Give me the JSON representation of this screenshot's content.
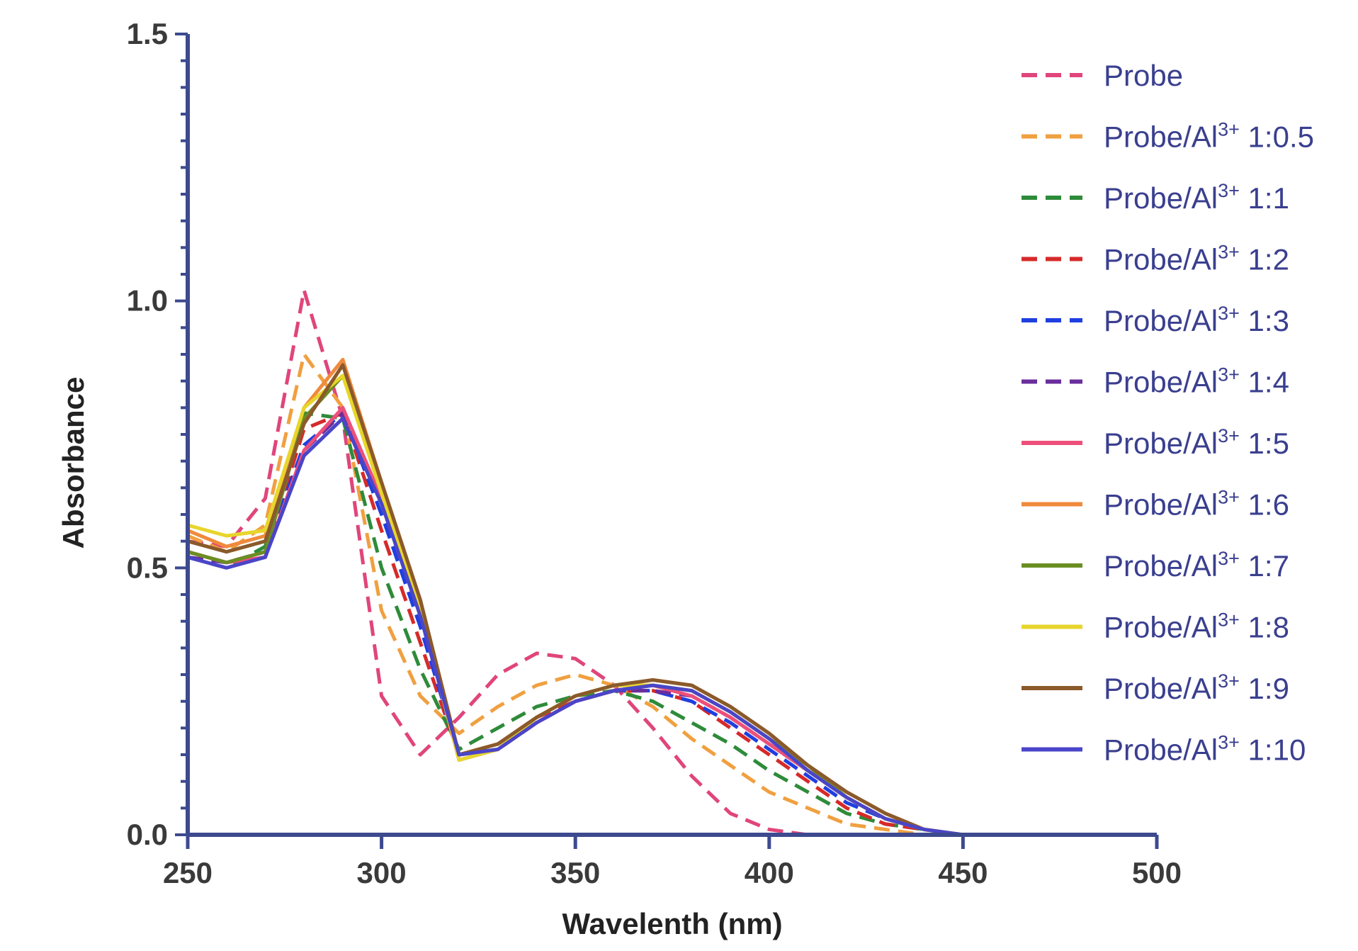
{
  "chart_data": {
    "type": "line",
    "title": "",
    "xlabel": "Wavelenth (nm)",
    "ylabel": "Absorbance",
    "xlim": [
      250,
      500
    ],
    "ylim": [
      0,
      1.5
    ],
    "xticks": [
      250,
      300,
      350,
      400,
      450,
      500
    ],
    "xtick_labels": [
      "250",
      "300",
      "350",
      "400",
      "450",
      "500"
    ],
    "yticks": [
      0,
      0.5,
      1.0,
      1.5
    ],
    "ytick_labels": [
      "0.0",
      "0.5",
      "1.0",
      "1.5"
    ],
    "grid": false,
    "legend_position": "right",
    "colors": {
      "axis": "#3d4a8f",
      "background": "#ffffff"
    },
    "x": [
      250,
      260,
      270,
      280,
      290,
      300,
      310,
      320,
      330,
      340,
      350,
      360,
      370,
      380,
      390,
      400,
      410,
      420,
      430,
      440,
      450,
      460,
      470,
      480,
      490,
      500
    ],
    "series": [
      {
        "name": "Probe",
        "label_main": "Probe",
        "label_sup": "",
        "label_tail": "",
        "color": "#e0457b",
        "dash": true,
        "values": [
          0.55,
          0.54,
          0.63,
          1.02,
          0.78,
          0.26,
          0.15,
          0.22,
          0.3,
          0.34,
          0.33,
          0.28,
          0.2,
          0.11,
          0.04,
          0.01,
          0.0,
          0.0,
          0.0,
          0.0,
          0.0,
          0.0,
          0.0,
          0.0,
          0.0,
          0.0
        ]
      },
      {
        "name": "Probe/Al3+ 1:0.5",
        "label_main": "Probe/Al",
        "label_sup": "3+",
        "label_tail": " 1:0.5",
        "color": "#f0a040",
        "dash": true,
        "values": [
          0.56,
          0.53,
          0.58,
          0.9,
          0.8,
          0.42,
          0.26,
          0.19,
          0.24,
          0.28,
          0.3,
          0.28,
          0.24,
          0.18,
          0.13,
          0.08,
          0.05,
          0.02,
          0.01,
          0.0,
          0.0,
          0.0,
          0.0,
          0.0,
          0.0,
          0.0
        ]
      },
      {
        "name": "Probe/Al3+ 1:1",
        "label_main": "Probe/Al",
        "label_sup": "3+",
        "label_tail": " 1:1",
        "color": "#2e8b3a",
        "dash": true,
        "values": [
          0.52,
          0.5,
          0.54,
          0.79,
          0.78,
          0.5,
          0.31,
          0.16,
          0.2,
          0.24,
          0.26,
          0.27,
          0.25,
          0.21,
          0.17,
          0.12,
          0.08,
          0.04,
          0.02,
          0.01,
          0.0,
          0.0,
          0.0,
          0.0,
          0.0,
          0.0
        ]
      },
      {
        "name": "Probe/Al3+ 1:2",
        "label_main": "Probe/Al",
        "label_sup": "3+",
        "label_tail": " 1:2",
        "color": "#d62a2a",
        "dash": true,
        "values": [
          0.53,
          0.51,
          0.53,
          0.76,
          0.79,
          0.57,
          0.36,
          0.15,
          0.17,
          0.22,
          0.25,
          0.27,
          0.27,
          0.25,
          0.2,
          0.15,
          0.1,
          0.05,
          0.02,
          0.01,
          0.0,
          0.0,
          0.0,
          0.0,
          0.0,
          0.0
        ]
      },
      {
        "name": "Probe/Al3+ 1:3",
        "label_main": "Probe/Al",
        "label_sup": "3+",
        "label_tail": " 1:3",
        "color": "#1f3fe0",
        "dash": true,
        "values": [
          0.52,
          0.51,
          0.53,
          0.73,
          0.79,
          0.6,
          0.39,
          0.15,
          0.16,
          0.21,
          0.25,
          0.27,
          0.27,
          0.25,
          0.21,
          0.16,
          0.11,
          0.06,
          0.03,
          0.01,
          0.0,
          0.0,
          0.0,
          0.0,
          0.0,
          0.0
        ]
      },
      {
        "name": "Probe/Al3+ 1:4",
        "label_main": "Probe/Al",
        "label_sup": "3+",
        "label_tail": " 1:4",
        "color": "#6a2e9c",
        "dash": true,
        "values": [
          0.52,
          0.51,
          0.52,
          0.72,
          0.79,
          0.62,
          0.41,
          0.15,
          0.16,
          0.21,
          0.25,
          0.27,
          0.27,
          0.26,
          0.22,
          0.17,
          0.12,
          0.07,
          0.03,
          0.01,
          0.0,
          0.0,
          0.0,
          0.0,
          0.0,
          0.0
        ]
      },
      {
        "name": "Probe/Al3+ 1:5",
        "label_main": "Probe/Al",
        "label_sup": "3+",
        "label_tail": " 1:5",
        "color": "#ee4f7a",
        "dash": false,
        "values": [
          0.53,
          0.51,
          0.52,
          0.72,
          0.8,
          0.63,
          0.42,
          0.14,
          0.16,
          0.21,
          0.25,
          0.27,
          0.28,
          0.26,
          0.22,
          0.17,
          0.12,
          0.07,
          0.03,
          0.01,
          0.0,
          0.0,
          0.0,
          0.0,
          0.0,
          0.0
        ]
      },
      {
        "name": "Probe/Al3+ 1:6",
        "label_main": "Probe/Al",
        "label_sup": "3+",
        "label_tail": " 1:6",
        "color": "#f08a3c",
        "dash": false,
        "values": [
          0.57,
          0.54,
          0.56,
          0.8,
          0.89,
          0.66,
          0.44,
          0.15,
          0.17,
          0.22,
          0.26,
          0.28,
          0.29,
          0.28,
          0.24,
          0.19,
          0.13,
          0.08,
          0.04,
          0.01,
          0.0,
          0.0,
          0.0,
          0.0,
          0.0,
          0.0
        ]
      },
      {
        "name": "Probe/Al3+ 1:7",
        "label_main": "Probe/Al",
        "label_sup": "3+",
        "label_tail": " 1:7",
        "color": "#6b8e23",
        "dash": false,
        "values": [
          0.53,
          0.51,
          0.53,
          0.78,
          0.86,
          0.65,
          0.43,
          0.15,
          0.16,
          0.22,
          0.26,
          0.28,
          0.28,
          0.27,
          0.23,
          0.18,
          0.13,
          0.07,
          0.03,
          0.01,
          0.0,
          0.0,
          0.0,
          0.0,
          0.0,
          0.0
        ]
      },
      {
        "name": "Probe/Al3+ 1:8",
        "label_main": "Probe/Al",
        "label_sup": "3+",
        "label_tail": " 1:8",
        "color": "#e8d52c",
        "dash": false,
        "values": [
          0.58,
          0.56,
          0.57,
          0.8,
          0.86,
          0.64,
          0.42,
          0.14,
          0.16,
          0.22,
          0.26,
          0.28,
          0.28,
          0.27,
          0.23,
          0.18,
          0.12,
          0.07,
          0.03,
          0.01,
          0.0,
          0.0,
          0.0,
          0.0,
          0.0,
          0.0
        ]
      },
      {
        "name": "Probe/Al3+ 1:9",
        "label_main": "Probe/Al",
        "label_sup": "3+",
        "label_tail": " 1:9",
        "color": "#8a5a2b",
        "dash": false,
        "values": [
          0.55,
          0.53,
          0.55,
          0.77,
          0.88,
          0.66,
          0.44,
          0.15,
          0.17,
          0.22,
          0.26,
          0.28,
          0.29,
          0.28,
          0.24,
          0.19,
          0.13,
          0.08,
          0.04,
          0.01,
          0.0,
          0.0,
          0.0,
          0.0,
          0.0,
          0.0
        ]
      },
      {
        "name": "Probe/Al3+ 1:10",
        "label_main": "Probe/Al",
        "label_sup": "3+",
        "label_tail": " 1:10",
        "color": "#4a45c8",
        "dash": false,
        "values": [
          0.52,
          0.5,
          0.52,
          0.71,
          0.78,
          0.62,
          0.41,
          0.15,
          0.16,
          0.21,
          0.25,
          0.27,
          0.28,
          0.27,
          0.23,
          0.18,
          0.12,
          0.07,
          0.03,
          0.01,
          0.0,
          0.0,
          0.0,
          0.0,
          0.0,
          0.0
        ]
      }
    ]
  }
}
